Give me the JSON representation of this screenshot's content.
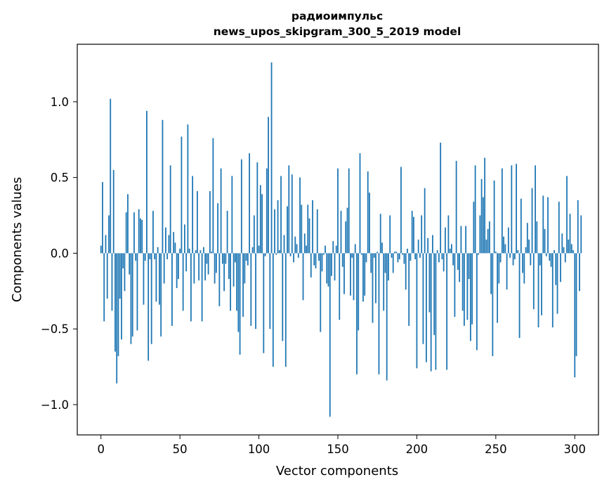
{
  "chart_data": {
    "type": "bar",
    "title": "радиоимпульс",
    "subtitle": "news_upos_skipgram_300_5_2019 model",
    "xlabel": "Vector components",
    "ylabel": "Components values",
    "xlim": [
      -15,
      315
    ],
    "ylim": [
      -1.2,
      1.38
    ],
    "xticks": [
      0,
      50,
      100,
      150,
      200,
      250,
      300
    ],
    "xtick_labels": [
      "0",
      "50",
      "100",
      "150",
      "200",
      "250",
      "300"
    ],
    "yticks": [
      -1.0,
      -0.5,
      0.0,
      0.5,
      1.0
    ],
    "ytick_labels": [
      "−1.0",
      "−0.5",
      "0.0",
      "0.5",
      "1.0"
    ],
    "grid": false,
    "bar_color": "#1f77b4",
    "values": [
      0.05,
      0.47,
      -0.45,
      0.12,
      -0.3,
      0.25,
      1.02,
      -0.38,
      0.55,
      -0.65,
      -0.86,
      -0.68,
      -0.3,
      -0.57,
      -0.1,
      -0.25,
      0.27,
      0.39,
      -0.14,
      -0.6,
      -0.55,
      0.27,
      -0.05,
      -0.51,
      0.29,
      0.23,
      0.22,
      -0.34,
      -0.05,
      0.94,
      -0.71,
      -0.04,
      -0.6,
      0.28,
      -0.04,
      -0.32,
      0.04,
      -0.34,
      -0.55,
      0.88,
      -0.2,
      0.17,
      -0.04,
      0.12,
      0.58,
      -0.48,
      0.14,
      0.07,
      -0.23,
      -0.17,
      0.03,
      0.77,
      -0.38,
      0.19,
      -0.12,
      0.85,
      0.03,
      -0.45,
      0.51,
      -0.2,
      0.02,
      0.41,
      -0.18,
      0.02,
      -0.45,
      0.04,
      -0.18,
      -0.07,
      -0.14,
      0.41,
      0.01,
      0.76,
      -0.2,
      -0.13,
      0.33,
      -0.35,
      0.56,
      -0.07,
      -0.25,
      -0.07,
      0.28,
      -0.17,
      -0.38,
      0.51,
      -0.22,
      -0.06,
      -0.38,
      -0.52,
      -0.67,
      0.62,
      -0.42,
      -0.2,
      -0.05,
      -0.08,
      0.66,
      -0.48,
      0.04,
      0.25,
      -0.5,
      0.6,
      0.05,
      0.45,
      0.39,
      -0.66,
      -0.02,
      0.56,
      0.9,
      -0.5,
      1.26,
      -0.75,
      0.29,
      -0.01,
      0.35,
      0.02,
      0.51,
      -0.58,
      0.12,
      -0.75,
      0.31,
      0.58,
      -0.02,
      0.52,
      -0.06,
      0.11,
      0.06,
      -0.03,
      0.5,
      0.32,
      -0.31,
      0.13,
      0.05,
      0.32,
      0.23,
      -0.16,
      0.35,
      -0.08,
      -0.1,
      0.29,
      -0.05,
      -0.52,
      -0.12,
      -0.01,
      0.05,
      -0.2,
      -0.22,
      -1.08,
      -0.15,
      0.08,
      -0.18,
      0.05,
      0.56,
      -0.44,
      0.28,
      -0.09,
      -0.27,
      0.21,
      0.3,
      0.56,
      -0.28,
      -0.03,
      -0.31,
      0.06,
      -0.8,
      -0.51,
      0.66,
      -0.01,
      -0.32,
      -0.28,
      -0.06,
      0.54,
      0.4,
      -0.13,
      -0.46,
      -0.03,
      -0.33,
      0.01,
      -0.8,
      0.26,
      0.07,
      -0.38,
      -0.13,
      -0.84,
      -0.18,
      0.25,
      -0.03,
      -0.13,
      0.01,
      0.01,
      -0.06,
      -0.04,
      0.57,
      -0.01,
      -0.07,
      -0.24,
      0.03,
      -0.48,
      -0.05,
      0.28,
      0.24,
      -0.04,
      -0.76,
      0.09,
      -0.03,
      0.25,
      -0.6,
      0.43,
      -0.72,
      0.1,
      -0.39,
      -0.78,
      0.12,
      -0.54,
      -0.77,
      0.02,
      -0.06,
      0.73,
      -0.04,
      -0.12,
      0.17,
      -0.77,
      0.25,
      0.03,
      0.06,
      -0.08,
      -0.42,
      0.61,
      -0.11,
      -0.19,
      0.18,
      -0.38,
      -0.48,
      0.18,
      -0.44,
      -0.17,
      -0.58,
      -0.47,
      0.34,
      0.58,
      -0.64,
      -0.01,
      0.25,
      0.49,
      0.37,
      0.63,
      0.09,
      0.16,
      0.21,
      -0.27,
      -0.68,
      0.48,
      0.01,
      -0.46,
      -0.2,
      -0.06,
      0.56,
      0.11,
      0.06,
      -0.24,
      0.17,
      -0.03,
      0.58,
      -0.08,
      -0.04,
      0.59,
      0.02,
      -0.56,
      0.36,
      -0.13,
      -0.2,
      0.04,
      0.2,
      0.09,
      -0.08,
      0.43,
      -0.37,
      0.58,
      0.21,
      -0.49,
      -0.08,
      -0.41,
      0.38,
      0.16,
      -0.02,
      0.37,
      -0.05,
      -0.09,
      -0.49,
      0.02,
      -0.21,
      -0.4,
      0.34,
      -0.19,
      0.13,
      0.04,
      -0.06,
      0.51,
      0.09,
      0.26,
      0.06,
      0.02,
      -0.82,
      -0.68,
      0.35,
      -0.25,
      0.25
    ]
  }
}
